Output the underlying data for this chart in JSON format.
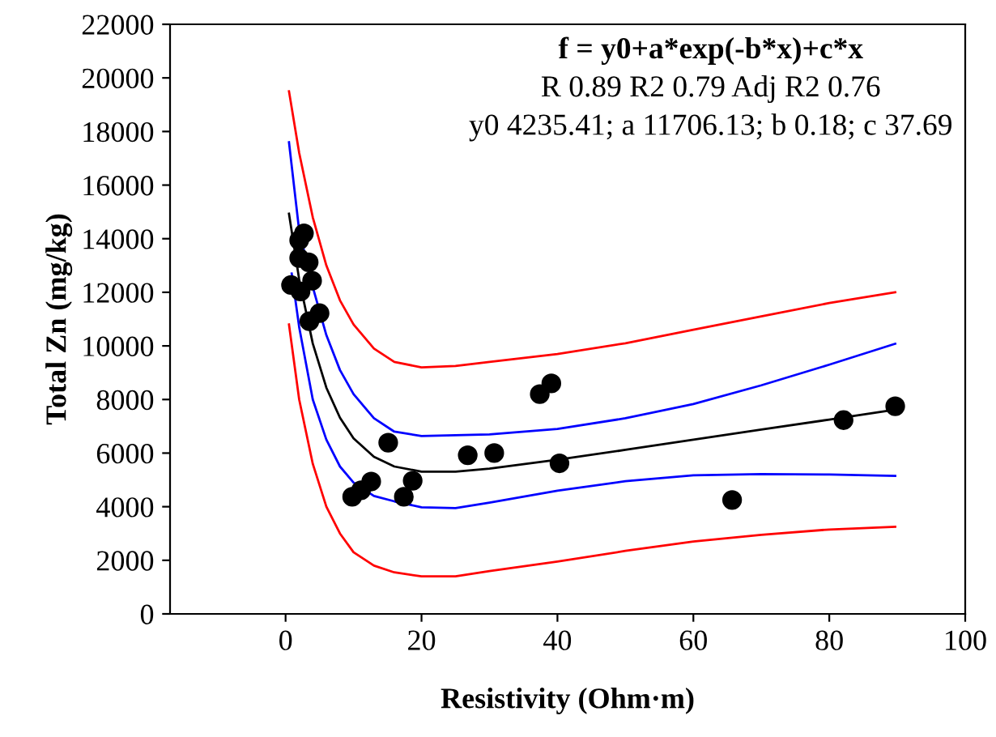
{
  "chart_data": {
    "type": "scatter",
    "xlabel": "Resistivity (Ohm·m)",
    "ylabel": "Total Zn (mg/kg)",
    "annotations": [
      "f = y0+a*exp(-b*x)+c*x",
      "R 0.89 R2 0.79 Adj R2 0.76",
      "y0 4235.41; a 11706.13; b 0.18; c 37.69"
    ],
    "xlim": [
      -17,
      100
    ],
    "xticks": [
      0,
      20,
      40,
      60,
      80,
      100
    ],
    "ylim": [
      0,
      22000
    ],
    "yticks": [
      0,
      2000,
      4000,
      6000,
      8000,
      10000,
      12000,
      14000,
      16000,
      18000,
      20000,
      22000
    ],
    "grid": false,
    "legend": false,
    "series": [
      {
        "marker": "circle",
        "color": "#000000",
        "x": [
          2.7,
          2.0,
          2.0,
          3.4,
          0.8,
          2.2,
          3.9,
          5.0,
          3.5,
          15.1,
          26.8,
          30.7,
          37.4,
          39.1,
          9.8,
          11.1,
          12.6,
          18.7,
          17.4,
          40.3,
          65.7,
          82.1,
          89.7
        ],
        "values": [
          14200,
          13940,
          13280,
          13120,
          12270,
          12030,
          12430,
          11220,
          10920,
          6390,
          5920,
          6000,
          8200,
          8600,
          4370,
          4610,
          4940,
          4970,
          4370,
          5620,
          4250,
          7230,
          7750
        ]
      },
      {
        "type": "line",
        "color": "#000000",
        "x": [
          0.5,
          2,
          4,
          6,
          8,
          10,
          13,
          16,
          20,
          25,
          30,
          40,
          50,
          60,
          70,
          80,
          89.7
        ],
        "values": [
          14930,
          12480,
          10090,
          8440,
          7320,
          6550,
          5860,
          5500,
          5310,
          5310,
          5420,
          5750,
          6120,
          6500,
          6880,
          7250,
          7620
        ]
      },
      {
        "type": "line",
        "color": "#0000ff",
        "x": [
          0.5,
          2,
          4,
          6,
          8,
          10,
          13,
          16,
          20,
          25,
          30,
          40,
          50,
          60,
          70,
          80,
          89.7
        ],
        "values": [
          17600,
          14300,
          12200,
          10400,
          9100,
          8200,
          7300,
          6800,
          6640,
          6670,
          6700,
          6900,
          7300,
          7830,
          8530,
          9300,
          10080
        ]
      },
      {
        "type": "line",
        "color": "#0000ff",
        "x": [
          0.9,
          2,
          4,
          6,
          8,
          10,
          13,
          16,
          20,
          25,
          30,
          40,
          50,
          60,
          70,
          80,
          89.7
        ],
        "values": [
          12700,
          10700,
          8000,
          6500,
          5500,
          4900,
          4400,
          4200,
          3980,
          3950,
          4150,
          4600,
          4950,
          5170,
          5220,
          5200,
          5150
        ]
      },
      {
        "type": "line",
        "color": "#ff0000",
        "x": [
          0.5,
          2,
          4,
          6,
          8,
          10,
          13,
          16,
          20,
          25,
          30,
          40,
          50,
          60,
          70,
          80,
          89.7
        ],
        "values": [
          19500,
          17200,
          14800,
          13000,
          11700,
          10800,
          9900,
          9400,
          9200,
          9250,
          9400,
          9700,
          10100,
          10600,
          11100,
          11600,
          12000
        ]
      },
      {
        "type": "line",
        "color": "#ff0000",
        "x": [
          0.5,
          2,
          4,
          6,
          8,
          10,
          13,
          16,
          20,
          25,
          30,
          40,
          50,
          60,
          70,
          80,
          89.7
        ],
        "values": [
          10800,
          8000,
          5600,
          4000,
          3000,
          2300,
          1800,
          1550,
          1400,
          1400,
          1600,
          1950,
          2350,
          2700,
          2950,
          3150,
          3250
        ]
      }
    ]
  }
}
